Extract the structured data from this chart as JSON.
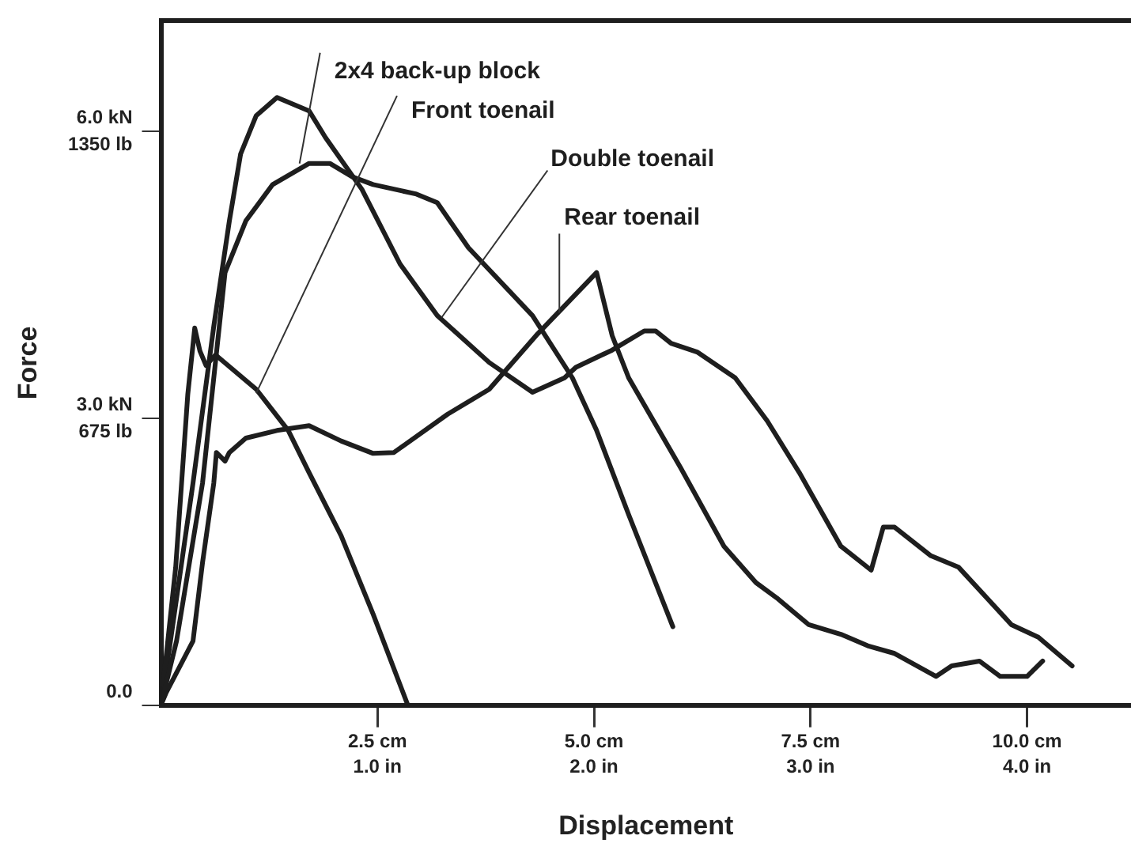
{
  "chart_data": {
    "type": "line",
    "xlabel": "Displacement",
    "y2label": "Force",
    "xlim": [
      0,
      11.2
    ],
    "ylim": [
      0,
      7.15
    ],
    "xticks": [
      {
        "value": 2.5,
        "label": "2.5 cm"
      },
      {
        "value": 5,
        "label": "5.0 cm"
      },
      {
        "value": 7.5,
        "label": "7.5 cm"
      },
      {
        "value": 10,
        "label": "10.0 cm"
      }
    ],
    "x2lim": [
      0,
      4.48
    ],
    "x2ticks": [
      {
        "value": 1,
        "label": "1.0 in"
      },
      {
        "value": 2,
        "label": "2.0 in"
      },
      {
        "value": 3,
        "label": "3.0 in"
      },
      {
        "value": 4,
        "label": "4.0 in"
      }
    ],
    "yticks": [
      {
        "value": 0,
        "label": "0.0"
      },
      {
        "value": 3,
        "label": "3.0 kN"
      },
      {
        "value": 6,
        "label": "6.0 kN"
      }
    ],
    "y2lim": [
      0,
      1608.75
    ],
    "y2ticks": [
      {
        "value": 675,
        "label": "675 lb"
      },
      {
        "value": 1350,
        "label": "1350 lb"
      }
    ],
    "grid": false,
    "legend": false,
    "marker": "none",
    "line_style": "solid",
    "annotations": [
      {
        "text": "2x4 back-up block",
        "x": 1.6,
        "y": 5.66
      },
      {
        "text": "Front toenail",
        "x": 1.1,
        "y": 3.26
      },
      {
        "text": "Double toenail",
        "x": 3.24,
        "y": 4.05
      },
      {
        "text": "Rear toenail",
        "x": 4.6,
        "y": 4.1
      }
    ],
    "series": [
      {
        "color": "#1e1e1e",
        "x": [
          0,
          0.18,
          0.48,
          0.74,
          0.98,
          1.29,
          1.71,
          1.95,
          2.21,
          2.45,
          2.95,
          3.19,
          3.55,
          4.29,
          4.75,
          5.03,
          5.4,
          5.91
        ],
        "values": [
          0,
          0.67,
          2.32,
          4.52,
          5.06,
          5.44,
          5.66,
          5.66,
          5.52,
          5.44,
          5.34,
          5.25,
          4.78,
          4.07,
          3.42,
          2.87,
          1.99,
          0.82
        ]
      },
      {
        "color": "#1e1e1e",
        "x": [
          0,
          0.17,
          0.31,
          0.39,
          0.45,
          0.52,
          0.63,
          1.1,
          1.47,
          1.71,
          2.08,
          2.45,
          2.85
        ],
        "values": [
          0,
          1.44,
          3.25,
          3.94,
          3.7,
          3.55,
          3.66,
          3.3,
          2.87,
          2.43,
          1.77,
          0.95,
          0
        ]
      },
      {
        "color": "#1e1e1e",
        "x": [
          0,
          0.11,
          0.37,
          0.61,
          0.79,
          0.92,
          1.1,
          1.34,
          1.71,
          1.9,
          2.32,
          2.76,
          3.19,
          3.79,
          4.29,
          4.66,
          4.79,
          5.21,
          5.58,
          5.71,
          5.89,
          6.19,
          6.63,
          7.0,
          7.37,
          7.85,
          8.2,
          8.34,
          8.47,
          8.89,
          9.21,
          9.82,
          10.13,
          10.52
        ],
        "values": [
          0,
          0.67,
          2.32,
          3.96,
          5.06,
          5.76,
          6.16,
          6.35,
          6.21,
          5.93,
          5.39,
          4.61,
          4.07,
          3.58,
          3.27,
          3.42,
          3.53,
          3.71,
          3.91,
          3.91,
          3.78,
          3.69,
          3.42,
          2.97,
          2.43,
          1.66,
          1.41,
          1.86,
          1.86,
          1.56,
          1.44,
          0.84,
          0.71,
          0.41
        ]
      },
      {
        "color": "#1e1e1e",
        "x": [
          0,
          0.06,
          0.37,
          0.48,
          0.61,
          0.64,
          0.74,
          0.79,
          0.98,
          1.34,
          1.71,
          2.08,
          2.45,
          2.69,
          3.31,
          3.79,
          4.35,
          5.03,
          5.21,
          5.4,
          6.0,
          6.5,
          6.87,
          7.11,
          7.48,
          7.85,
          8.16,
          8.47,
          8.95,
          9.13,
          9.45,
          9.69,
          10.0,
          10.18
        ],
        "values": [
          0,
          0.13,
          0.67,
          1.49,
          2.32,
          2.64,
          2.55,
          2.64,
          2.79,
          2.87,
          2.92,
          2.76,
          2.63,
          2.64,
          3.04,
          3.3,
          3.88,
          4.52,
          3.86,
          3.42,
          2.48,
          1.66,
          1.28,
          1.12,
          0.84,
          0.74,
          0.62,
          0.54,
          0.3,
          0.41,
          0.46,
          0.3,
          0.3,
          0.46
        ]
      }
    ]
  }
}
